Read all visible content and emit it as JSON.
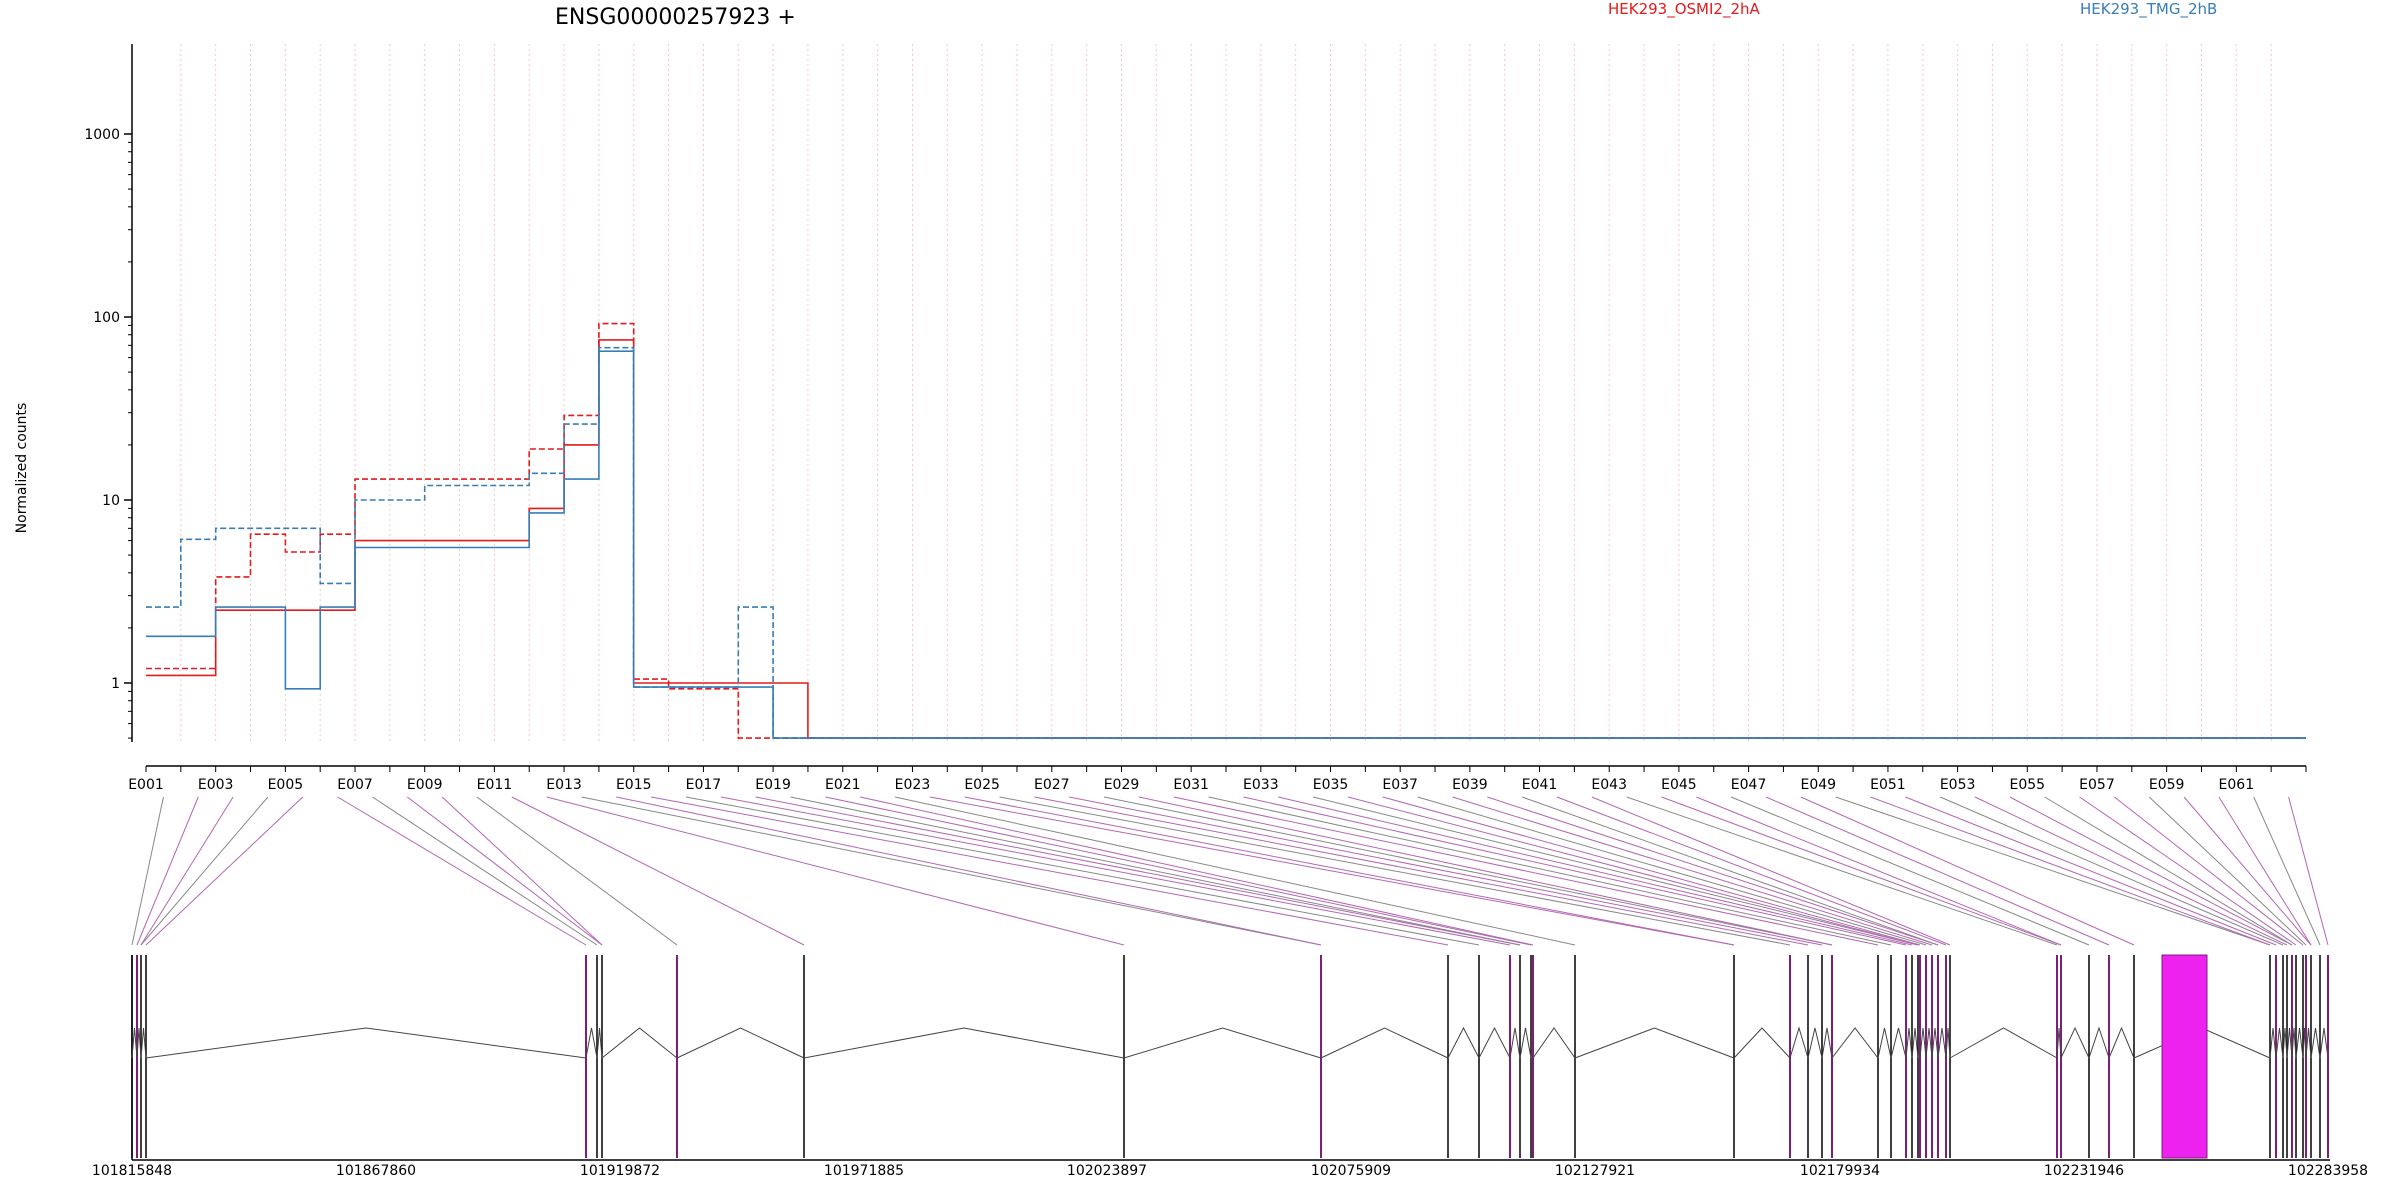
{
  "chart_data": {
    "type": "line",
    "title": "ENSG00000257923 +",
    "ylabel": "Normalized counts",
    "yscale": "log",
    "ylim": [
      0.5,
      2400
    ],
    "ytick_values": [
      1,
      10,
      100,
      1000
    ],
    "ytick_labels": [
      "1",
      "10",
      "100",
      "1000"
    ],
    "grid": "vertical dotted lines at each exon bin",
    "legend_placement": "top",
    "legend": [
      {
        "name": "HEK293_OSMI2_2hA",
        "color": "#e41a1c"
      },
      {
        "name": "HEK293_TMG_2hB",
        "color": "#377eb8"
      }
    ],
    "exon_labels": [
      "E001",
      "E003",
      "E005",
      "E007",
      "E009",
      "E011",
      "E013",
      "E015",
      "E017",
      "E019",
      "E021",
      "E023",
      "E025",
      "E027",
      "E029",
      "E031",
      "E033",
      "E035",
      "E037",
      "E039",
      "E041",
      "E043",
      "E045",
      "E047",
      "E049",
      "E051",
      "E053",
      "E055",
      "E057",
      "E059",
      "E061"
    ],
    "n_bins": 62,
    "series": [
      {
        "name": "HEK293_OSMI2_2hA",
        "color": "#e41a1c",
        "values": [
          1.1,
          1.1,
          2.5,
          2.5,
          2.5,
          2.5,
          6.0,
          6.0,
          6.0,
          6.0,
          6.0,
          9.0,
          20.0,
          75.0,
          1.0,
          1.0,
          1.0,
          1.0,
          1.0,
          0.5,
          0.5,
          0.5,
          0.5,
          0.5,
          0.5,
          0.5,
          0.5,
          0.5,
          0.5,
          0.5,
          0.5,
          0.5,
          0.5,
          0.5,
          0.5,
          0.5,
          0.5,
          0.5,
          0.5,
          0.5,
          0.5,
          0.5,
          0.5,
          0.5,
          0.5,
          0.5,
          0.5,
          0.5,
          0.5,
          0.5,
          0.5,
          0.5,
          0.5,
          0.5,
          0.5,
          0.5,
          0.5,
          0.5,
          0.5,
          0.5,
          0.5,
          0.5
        ]
      },
      {
        "name": "HEK293_OSMI2_2hA",
        "color": "#e41a1c",
        "values": [
          1.2,
          1.2,
          3.8,
          6.5,
          5.2,
          6.5,
          13,
          13,
          13,
          13,
          13,
          19,
          29,
          92,
          1.05,
          0.93,
          0.93,
          0.5,
          0.5,
          0.5,
          0.5,
          0.5,
          0.5,
          0.5,
          0.5,
          0.5,
          0.5,
          0.5,
          0.5,
          0.5,
          0.5,
          0.5,
          0.5,
          0.5,
          0.5,
          0.5,
          0.5,
          0.5,
          0.5,
          0.5,
          0.5,
          0.5,
          0.5,
          0.5,
          0.5,
          0.5,
          0.5,
          0.5,
          0.5,
          0.5,
          0.5,
          0.5,
          0.5,
          0.5,
          0.5,
          0.5,
          0.5,
          0.5,
          0.5,
          0.5,
          0.5,
          0.5
        ]
      },
      {
        "name": "HEK293_TMG_2hB",
        "color": "#377eb8",
        "values": [
          1.8,
          1.8,
          2.6,
          2.6,
          0.93,
          2.6,
          5.5,
          5.5,
          5.5,
          5.5,
          5.5,
          8.5,
          13,
          65,
          0.95,
          0.95,
          0.95,
          0.95,
          0.5,
          0.5,
          0.5,
          0.5,
          0.5,
          0.5,
          0.5,
          0.5,
          0.5,
          0.5,
          0.5,
          0.5,
          0.5,
          0.5,
          0.5,
          0.5,
          0.5,
          0.5,
          0.5,
          0.5,
          0.5,
          0.5,
          0.5,
          0.5,
          0.5,
          0.5,
          0.5,
          0.5,
          0.5,
          0.5,
          0.5,
          0.5,
          0.5,
          0.5,
          0.5,
          0.5,
          0.5,
          0.5,
          0.5,
          0.5,
          0.5,
          0.5,
          0.5,
          0.5
        ]
      },
      {
        "name": "HEK293_TMG_2hB",
        "color": "#377eb8",
        "values": [
          2.6,
          6.1,
          7.0,
          7.0,
          7.0,
          3.5,
          10,
          10,
          12,
          12,
          12,
          14,
          26,
          68,
          0.95,
          0.95,
          0.95,
          2.6,
          0.5,
          0.5,
          0.5,
          0.5,
          0.5,
          0.5,
          0.5,
          0.5,
          0.5,
          0.5,
          0.5,
          0.5,
          0.5,
          0.5,
          0.5,
          0.5,
          0.5,
          0.5,
          0.5,
          0.5,
          0.5,
          0.5,
          0.5,
          0.5,
          0.5,
          0.5,
          0.5,
          0.5,
          0.5,
          0.5,
          0.5,
          0.5,
          0.5,
          0.5,
          0.5,
          0.5,
          0.5,
          0.5,
          0.5,
          0.5,
          0.5,
          0.5,
          0.5,
          0.5
        ]
      }
    ]
  }
}
